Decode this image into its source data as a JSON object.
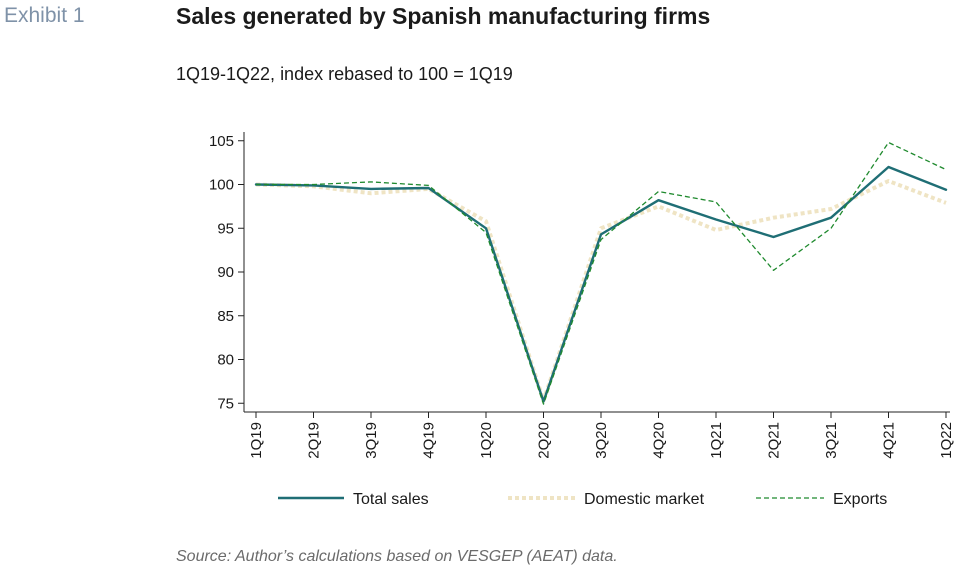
{
  "header": {
    "exhibit": "Exhibit 1",
    "title": "Sales generated by Spanish manufacturing firms",
    "subtitle": "1Q19-1Q22, index rebased to 100 = 1Q19"
  },
  "footer": {
    "source": "Source: Author’s calculations based on VESGEP (AEAT) data."
  },
  "chart_data": {
    "type": "line",
    "title": "Sales generated by Spanish manufacturing firms",
    "subtitle": "1Q19-1Q22, index rebased to 100 = 1Q19",
    "x": [
      "1Q19",
      "2Q19",
      "3Q19",
      "4Q19",
      "1Q20",
      "2Q20",
      "3Q20",
      "4Q20",
      "1Q21",
      "2Q21",
      "3Q21",
      "4Q21",
      "1Q22"
    ],
    "ylim": [
      74,
      106
    ],
    "yticks": [
      75,
      80,
      85,
      90,
      95,
      100,
      105
    ],
    "grid": false,
    "legend_position": "bottom",
    "series": [
      {
        "name": "Total sales",
        "color": "#1f6e75",
        "style": "solid",
        "values": [
          100,
          99.9,
          99.5,
          99.6,
          95.0,
          75.2,
          94.3,
          98.2,
          96.0,
          94.0,
          96.2,
          102.0,
          99.4
        ]
      },
      {
        "name": "Domestic market",
        "color": "#efe4c4",
        "style": "dotted",
        "values": [
          100,
          99.8,
          99.0,
          99.5,
          95.8,
          75.3,
          95.0,
          97.5,
          94.8,
          96.2,
          97.2,
          100.4,
          97.9
        ]
      },
      {
        "name": "Exports",
        "color": "#1f8a2e",
        "style": "dashed",
        "values": [
          100,
          100.0,
          100.3,
          99.9,
          94.5,
          74.9,
          93.7,
          99.2,
          98.0,
          90.2,
          95.0,
          104.8,
          101.7
        ]
      }
    ]
  }
}
